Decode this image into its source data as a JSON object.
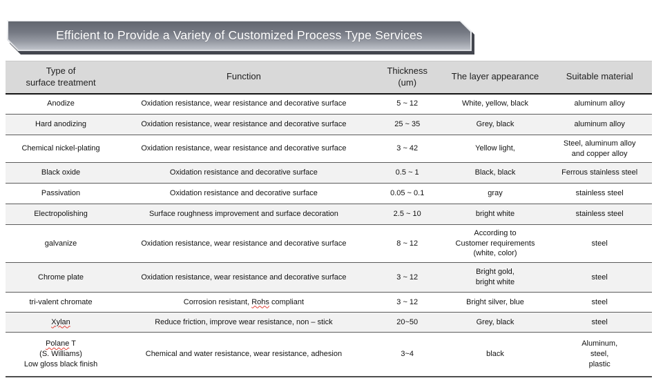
{
  "banner": {
    "title": "Efficient to Provide a Variety of Customized Process Type Services"
  },
  "misspelled_words": [
    "Rohs",
    "Xylan",
    "Polane"
  ],
  "colors": {
    "banner_gradient_top": "#62666f",
    "banner_gradient_bottom": "#bfc3ca",
    "banner_shadow": "#43464e",
    "header_bg": "#d9d9d9",
    "stripe_bg": "#f2f2f2",
    "spellcheck_underline": "#e03c31",
    "text": "#111111"
  },
  "table": {
    "columns": [
      "Type of\nsurface treatment",
      "Function",
      "Thickness\n(um)",
      "The layer appearance",
      "Suitable material"
    ],
    "rows": [
      {
        "treatment": "Anodize",
        "function": "Oxidation resistance, wear resistance and decorative surface",
        "thickness": "5 ~ 12",
        "appearance": "White, yellow, black",
        "material": "aluminum alloy"
      },
      {
        "treatment": "Hard anodizing",
        "function": "Oxidation resistance, wear resistance and decorative surface",
        "thickness": "25 ~ 35",
        "appearance": "Grey, black",
        "material": "aluminum alloy"
      },
      {
        "treatment": "Chemical nickel-plating",
        "function": "Oxidation resistance, wear resistance and decorative surface",
        "thickness": "3 ~ 42",
        "appearance": "Yellow light,",
        "material": "Steel, aluminum alloy\nand copper alloy"
      },
      {
        "treatment": "Black oxide",
        "function": "Oxidation resistance and decorative surface",
        "thickness": "0.5 ~ 1",
        "appearance": "Black, black",
        "material": "Ferrous stainless steel"
      },
      {
        "treatment": "Passivation",
        "function": "Oxidation resistance and decorative surface",
        "thickness": "0.05 ~ 0.1",
        "appearance": "gray",
        "material": "stainless steel"
      },
      {
        "treatment": "Electropolishing",
        "function": "Surface roughness improvement and surface decoration",
        "thickness": "2.5 ~ 10",
        "appearance": "bright white",
        "material": "stainless steel"
      },
      {
        "treatment": "galvanize",
        "function": "Oxidation resistance, wear resistance and decorative surface",
        "thickness": "8 ~ 12",
        "appearance": "According to\nCustomer requirements\n(white, color)",
        "material": "steel"
      },
      {
        "treatment": "Chrome plate",
        "function": "Oxidation resistance, wear resistance and decorative surface",
        "thickness": "3 ~ 12",
        "appearance": "Bright gold,\nbright white",
        "material": "steel"
      },
      {
        "treatment": "tri-valent chromate",
        "function": "Corrosion resistant, Rohs compliant",
        "thickness": "3 ~ 12",
        "appearance": "Bright silver, blue",
        "material": "steel"
      },
      {
        "treatment": "Xylan",
        "function": "Reduce friction, improve wear resistance, non – stick",
        "thickness": "20~50",
        "appearance": "Grey, black",
        "material": "steel"
      },
      {
        "treatment": "Polane T\n(S. Williams)\nLow gloss black finish",
        "function": "Chemical and water resistance, wear resistance, adhesion",
        "thickness": "3~4",
        "appearance": "black",
        "material": "Aluminum,\nsteel,\nplastic"
      }
    ]
  }
}
